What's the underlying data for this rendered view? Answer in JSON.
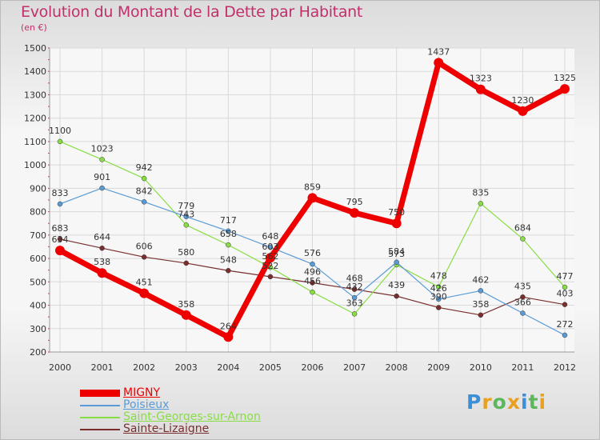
{
  "header": {
    "title": "Evolution du Montant de la Dette par Habitant",
    "subtitle": "(en €)"
  },
  "logo": {
    "text": "Proxiti",
    "colors": [
      "#3b8fd9",
      "#e8a020",
      "#5cb85c",
      "#e8a020",
      "#3b8fd9",
      "#5cb85c",
      "#e8a020"
    ]
  },
  "chart_data": {
    "type": "line",
    "title": "Evolution du Montant de la Dette par Habitant",
    "subtitle": "(en €)",
    "x": [
      "2000",
      "2001",
      "2002",
      "2003",
      "2004",
      "2005",
      "2006",
      "2007",
      "2008",
      "2009",
      "2010",
      "2011",
      "2012"
    ],
    "ylim": [
      200,
      1500
    ],
    "yticks": [
      200,
      300,
      400,
      500,
      600,
      700,
      800,
      900,
      1000,
      1100,
      1200,
      1300,
      1400,
      1500
    ],
    "grid": true,
    "legend_position": "bottom-left",
    "series": [
      {
        "name": "MIGNY",
        "color": "#ee0000",
        "emphasis": true,
        "values": [
          634,
          538,
          451,
          358,
          264,
          603,
          859,
          795,
          750,
          1437,
          1323,
          1230,
          1325
        ],
        "labels": [
          "634",
          "538",
          "451",
          "358",
          "264",
          "603",
          "859",
          "795",
          "750",
          "1437",
          "1323",
          "1230",
          "1325"
        ]
      },
      {
        "name": "Poisieux",
        "color": "#5b9bd5",
        "values": [
          833,
          901,
          842,
          779,
          717,
          648,
          576,
          432,
          584,
          426,
          462,
          366,
          272
        ],
        "labels": [
          "833",
          "901",
          "842",
          "779",
          "717",
          "648",
          "576",
          "432",
          "584",
          "426",
          "462",
          "366",
          "272"
        ]
      },
      {
        "name": "Saint-Georges-sur-Arnon",
        "color": "#88dd44",
        "values": [
          1100,
          1023,
          942,
          743,
          658,
          562,
          456,
          363,
          573,
          478,
          835,
          684,
          477
        ],
        "labels": [
          "1100",
          "1023",
          "942",
          "743",
          "658",
          "562",
          "456",
          "363",
          "573",
          "478",
          "835",
          "684",
          "477"
        ]
      },
      {
        "name": "Sainte-Lizaigne",
        "color": "#7a2e2e",
        "values": [
          683,
          644,
          606,
          580,
          548,
          522,
          496,
          468,
          439,
          390,
          358,
          435,
          403
        ],
        "labels": [
          "683",
          "644",
          "606",
          "580",
          "548",
          "522",
          "496",
          "468",
          "439",
          "390",
          "358",
          "435",
          "403"
        ]
      }
    ]
  }
}
